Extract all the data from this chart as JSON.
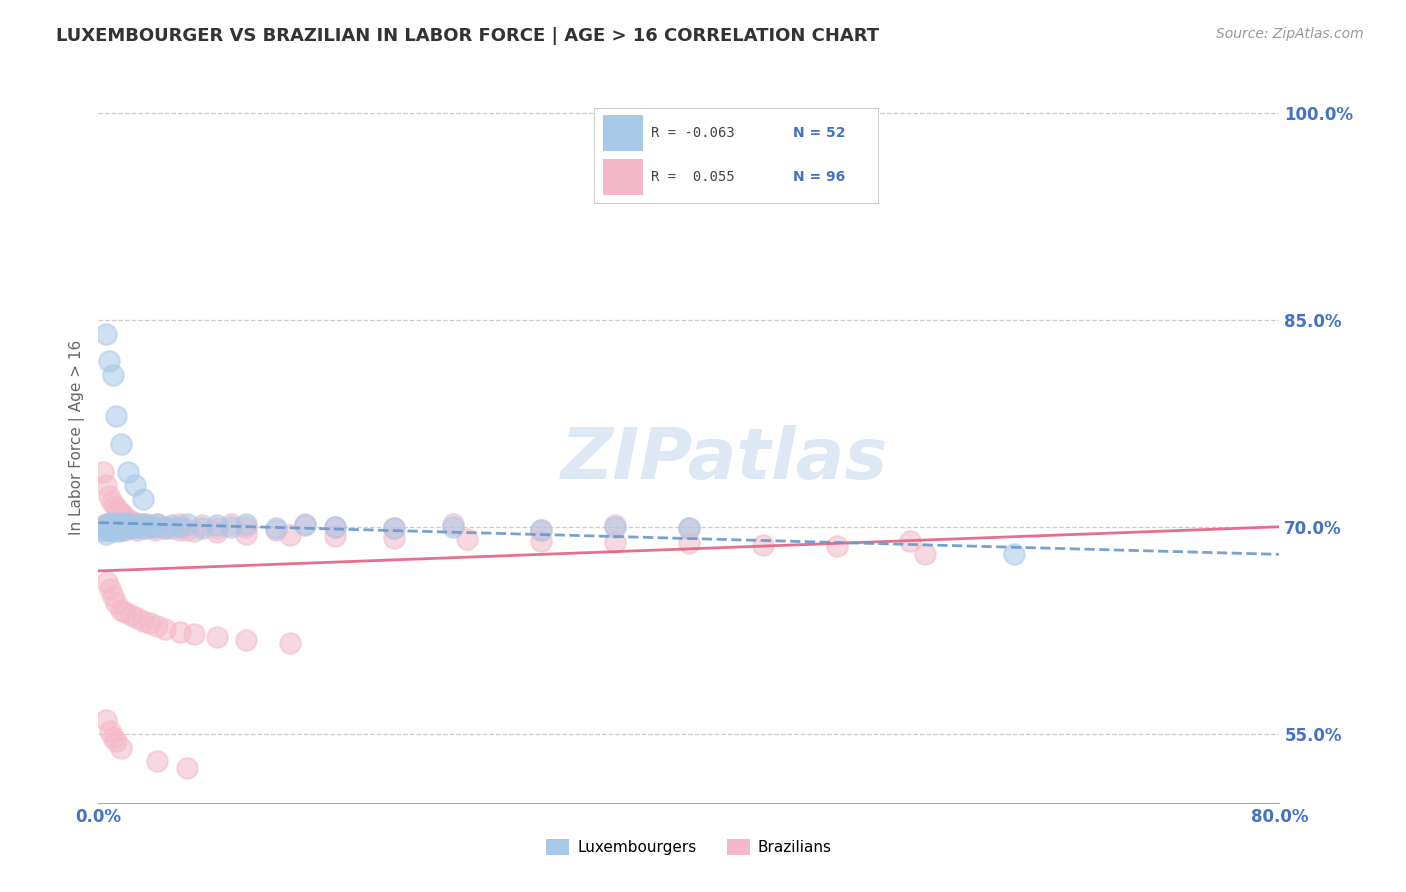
{
  "title": "LUXEMBOURGER VS BRAZILIAN IN LABOR FORCE | AGE > 16 CORRELATION CHART",
  "source": "Source: ZipAtlas.com",
  "ylabel": "In Labor Force | Age > 16",
  "xlim": [
    0.0,
    0.8
  ],
  "ylim": [
    0.5,
    1.03
  ],
  "yticks": [
    0.55,
    0.7,
    0.85,
    1.0
  ],
  "ytick_labels": [
    "55.0%",
    "70.0%",
    "85.0%",
    "100.0%"
  ],
  "xticks": [
    0.0,
    0.2,
    0.4,
    0.6,
    0.8
  ],
  "xtick_labels": [
    "0.0%",
    "",
    "",
    "",
    "80.0%"
  ],
  "color_lux": "#a8c8e8",
  "color_bra": "#f4b8c8",
  "color_lux_line": "#6699cc",
  "color_bra_line": "#e06080",
  "background_color": "#ffffff",
  "grid_color": "#cccccc",
  "title_color": "#333333",
  "axis_label_color": "#666666",
  "tick_label_color": "#4472c4",
  "watermark_color": "#dde8f4",
  "lux_x": [
    0.003,
    0.004,
    0.005,
    0.006,
    0.007,
    0.008,
    0.009,
    0.01,
    0.011,
    0.012,
    0.013,
    0.014,
    0.015,
    0.016,
    0.017,
    0.018,
    0.019,
    0.02,
    0.022,
    0.024,
    0.026,
    0.028,
    0.03,
    0.032,
    0.035,
    0.038,
    0.04,
    0.045,
    0.05,
    0.055,
    0.06,
    0.07,
    0.08,
    0.09,
    0.1,
    0.12,
    0.14,
    0.16,
    0.2,
    0.24,
    0.3,
    0.35,
    0.4,
    0.005,
    0.007,
    0.01,
    0.012,
    0.015,
    0.02,
    0.025,
    0.03,
    0.62
  ],
  "lux_y": [
    0.7,
    0.698,
    0.695,
    0.702,
    0.698,
    0.703,
    0.697,
    0.701,
    0.699,
    0.703,
    0.697,
    0.7,
    0.702,
    0.698,
    0.701,
    0.699,
    0.703,
    0.7,
    0.702,
    0.699,
    0.701,
    0.7,
    0.702,
    0.699,
    0.701,
    0.7,
    0.702,
    0.699,
    0.701,
    0.7,
    0.702,
    0.699,
    0.701,
    0.7,
    0.702,
    0.699,
    0.701,
    0.7,
    0.699,
    0.7,
    0.698,
    0.7,
    0.699,
    0.84,
    0.82,
    0.81,
    0.78,
    0.76,
    0.74,
    0.73,
    0.72,
    0.68
  ],
  "bra_x": [
    0.003,
    0.004,
    0.005,
    0.006,
    0.007,
    0.008,
    0.009,
    0.01,
    0.011,
    0.012,
    0.013,
    0.014,
    0.015,
    0.016,
    0.017,
    0.018,
    0.019,
    0.02,
    0.022,
    0.024,
    0.026,
    0.028,
    0.03,
    0.032,
    0.035,
    0.038,
    0.04,
    0.045,
    0.05,
    0.055,
    0.06,
    0.07,
    0.08,
    0.09,
    0.1,
    0.12,
    0.14,
    0.16,
    0.2,
    0.24,
    0.3,
    0.35,
    0.4,
    0.003,
    0.005,
    0.007,
    0.009,
    0.011,
    0.013,
    0.015,
    0.017,
    0.019,
    0.022,
    0.025,
    0.028,
    0.032,
    0.038,
    0.045,
    0.055,
    0.065,
    0.08,
    0.1,
    0.13,
    0.16,
    0.2,
    0.25,
    0.3,
    0.35,
    0.4,
    0.45,
    0.5,
    0.006,
    0.008,
    0.01,
    0.012,
    0.015,
    0.018,
    0.022,
    0.026,
    0.03,
    0.035,
    0.04,
    0.045,
    0.055,
    0.065,
    0.08,
    0.1,
    0.13,
    0.56,
    0.005,
    0.008,
    0.01,
    0.012,
    0.015,
    0.04,
    0.06,
    0.55
  ],
  "bra_y": [
    0.698,
    0.701,
    0.699,
    0.702,
    0.7,
    0.698,
    0.702,
    0.7,
    0.699,
    0.702,
    0.698,
    0.701,
    0.699,
    0.702,
    0.7,
    0.698,
    0.702,
    0.7,
    0.699,
    0.702,
    0.698,
    0.701,
    0.699,
    0.702,
    0.7,
    0.698,
    0.702,
    0.7,
    0.699,
    0.702,
    0.698,
    0.701,
    0.699,
    0.702,
    0.7,
    0.698,
    0.702,
    0.7,
    0.699,
    0.702,
    0.698,
    0.701,
    0.699,
    0.74,
    0.73,
    0.722,
    0.718,
    0.715,
    0.712,
    0.71,
    0.708,
    0.706,
    0.704,
    0.703,
    0.702,
    0.701,
    0.7,
    0.699,
    0.698,
    0.697,
    0.696,
    0.695,
    0.694,
    0.693,
    0.692,
    0.691,
    0.69,
    0.689,
    0.688,
    0.687,
    0.686,
    0.66,
    0.655,
    0.65,
    0.645,
    0.64,
    0.638,
    0.636,
    0.634,
    0.632,
    0.63,
    0.628,
    0.626,
    0.624,
    0.622,
    0.62,
    0.618,
    0.616,
    0.68,
    0.56,
    0.552,
    0.548,
    0.545,
    0.54,
    0.53,
    0.525,
    0.69
  ]
}
